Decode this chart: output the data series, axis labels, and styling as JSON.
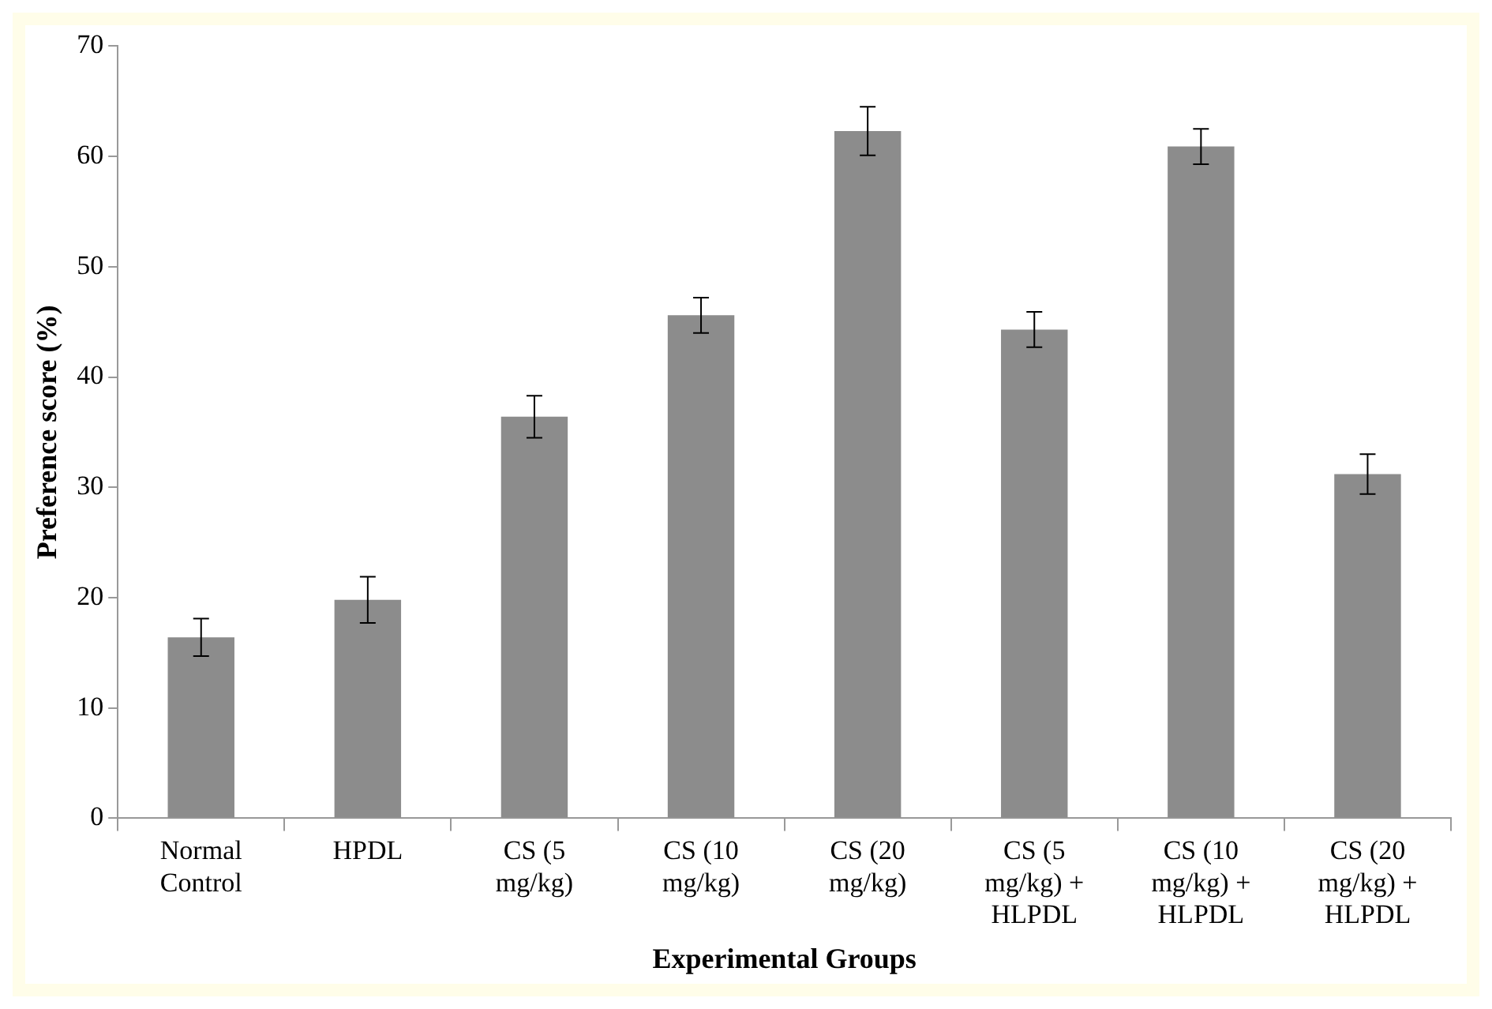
{
  "chart_data": {
    "type": "bar",
    "xlabel": "Experimental Groups",
    "ylabel": "Preference score (%)",
    "categories": [
      "Normal Control",
      "HPDL",
      "CS (5 mg/kg)",
      "CS (10 mg/kg)",
      "CS (20 mg/kg)",
      "CS (5 mg/kg) + HLPDL",
      "CS (10 mg/kg) + HLPDL",
      "CS (20 mg/kg) + HLPDL"
    ],
    "values": [
      16.4,
      19.8,
      36.4,
      45.6,
      62.3,
      44.3,
      60.9,
      31.2
    ],
    "errors": [
      1.7,
      2.1,
      1.9,
      1.6,
      2.2,
      1.6,
      1.6,
      1.8
    ],
    "color": "#8c8c8c",
    "ylim": [
      0,
      70
    ],
    "yticks": [
      0,
      10,
      20,
      30,
      40,
      50,
      60,
      70
    ],
    "grid": false,
    "legend": false
  }
}
